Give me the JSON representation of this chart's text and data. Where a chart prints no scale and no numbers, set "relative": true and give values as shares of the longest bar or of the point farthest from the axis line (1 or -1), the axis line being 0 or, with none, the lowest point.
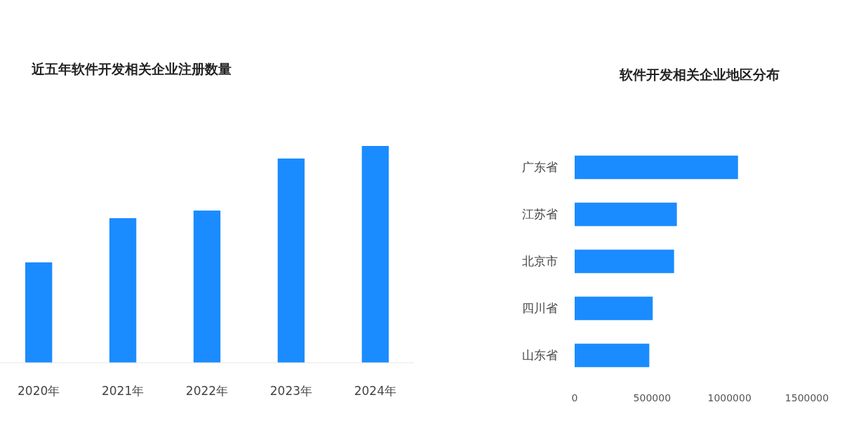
{
  "chart_data": [
    {
      "type": "bar",
      "title": "近五年软件开发相关企业注册数量",
      "categories": [
        "2020年",
        "2021年",
        "2022年",
        "2023年",
        "2024年"
      ],
      "values": [
        0.463,
        0.667,
        0.702,
        0.942,
        1
      ],
      "color": "#1a8cff",
      "relative": true,
      "grid": false
    },
    {
      "type": "bar",
      "title": "软件开发相关企业地区分布",
      "orientation": "horizontal",
      "categories": [
        "广东省",
        "江苏省",
        "北京市",
        "四川省",
        "山东省"
      ],
      "values": [
        1055000,
        660000,
        642000,
        504000,
        482000
      ],
      "color": "#1a8cff",
      "xlim": [
        0,
        1500000
      ],
      "xticks": [
        0,
        500000,
        1000000,
        1500000
      ],
      "grid": false
    }
  ]
}
